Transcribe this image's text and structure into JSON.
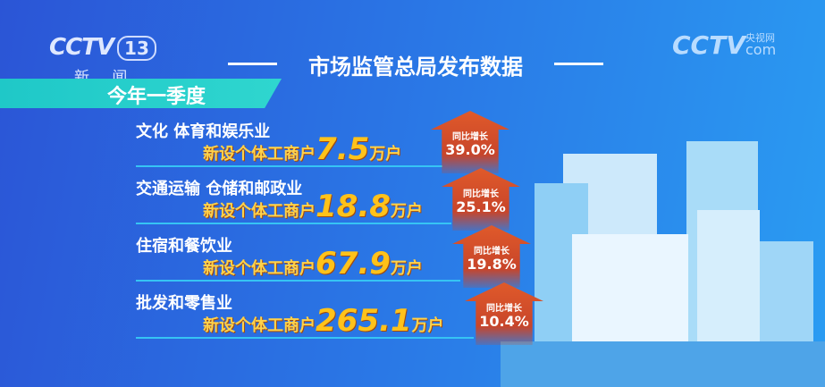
{
  "channel": {
    "logo": "CCTV",
    "number": "13",
    "name": "新 闻"
  },
  "watermark": {
    "logo": "CCTV",
    "site_cn": "央视网",
    "site_en": "com"
  },
  "title": "市场监管总局发布数据",
  "period": "今年一季度",
  "rows": [
    {
      "category": "文化 体育和娱乐业",
      "label": "新设个体工商户",
      "value": "7.5",
      "unit": "万户",
      "growth_label": "同比增长",
      "growth": "39.0%"
    },
    {
      "category": "交通运输 仓储和邮政业",
      "label": "新设个体工商户",
      "value": "18.8",
      "unit": "万户",
      "growth_label": "同比增长",
      "growth": "25.1%"
    },
    {
      "category": "住宿和餐饮业",
      "label": "新设个体工商户",
      "value": "67.9",
      "unit": "万户",
      "growth_label": "同比增长",
      "growth": "19.8%"
    },
    {
      "category": "批发和零售业",
      "label": "新设个体工商户",
      "value": "265.1",
      "unit": "万户",
      "growth_label": "同比增长",
      "growth": "10.4%"
    }
  ],
  "colors": {
    "accent": "#ffc21a",
    "badge": "#d4502a",
    "band": "#2fd6cf"
  }
}
